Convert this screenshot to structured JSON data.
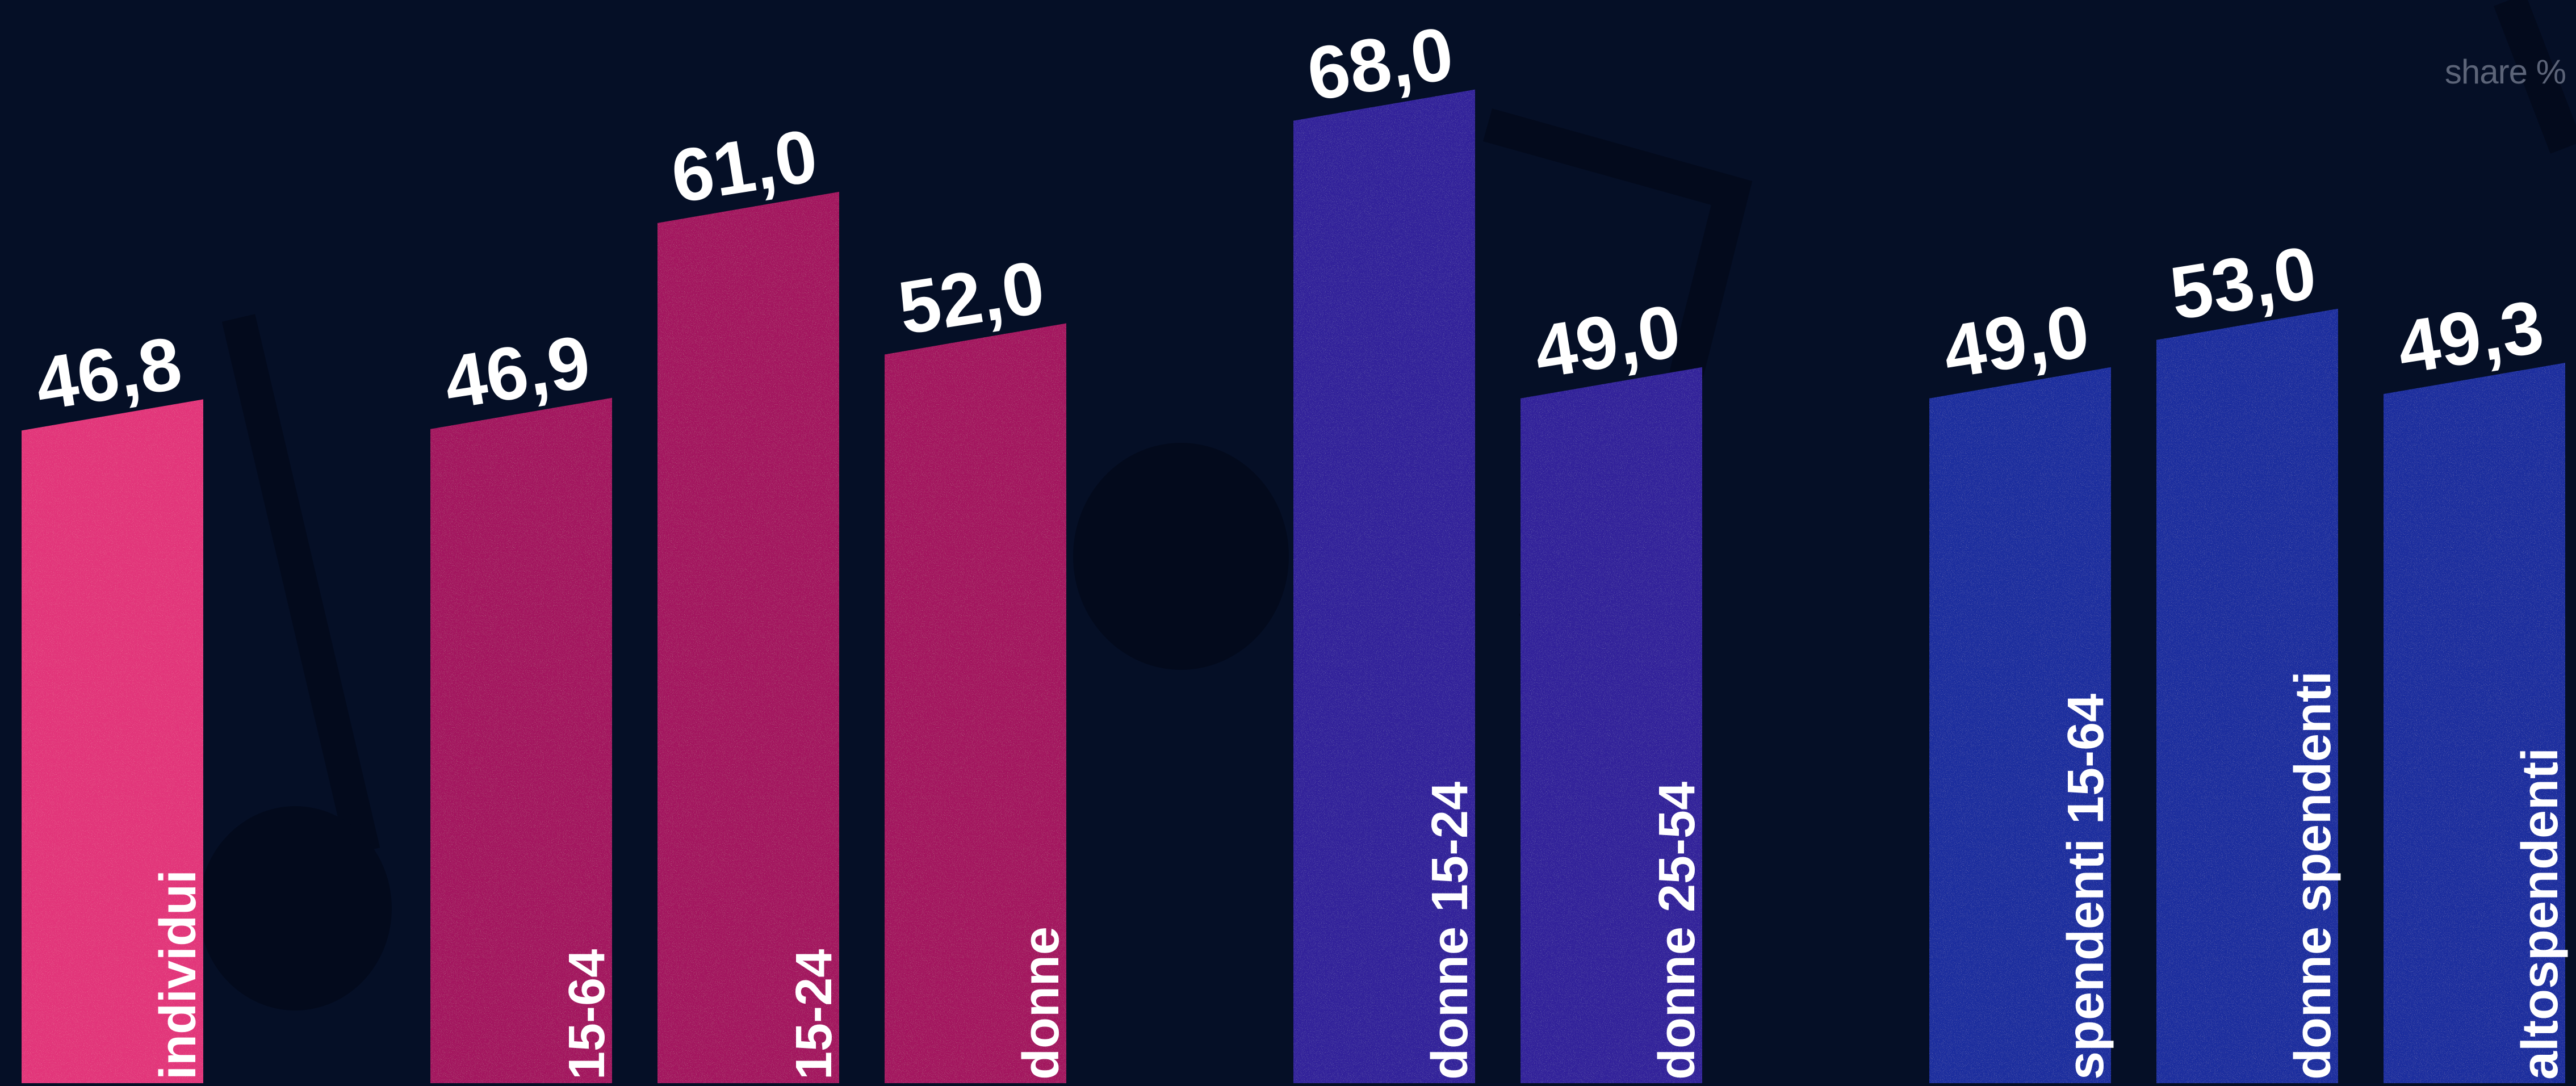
{
  "chart_data": {
    "type": "bar",
    "unit_label": "share %",
    "ylim": [
      0,
      70
    ],
    "grid": false,
    "legend": "none",
    "categories": [
      "individui",
      "15-64",
      "15-24",
      "donne",
      "donne 15-24",
      "donne 25-54",
      "spendenti 15-64",
      "donne spendenti",
      "altospendenti"
    ],
    "values": [
      46.8,
      46.9,
      61.0,
      52.0,
      68.0,
      49.0,
      49.0,
      53.0,
      49.3
    ],
    "value_labels": [
      "46,8",
      "46,9",
      "61,0",
      "52,0",
      "68,0",
      "49,0",
      "49,0",
      "53,0",
      "49,3"
    ],
    "groups": [
      {
        "color": "#e2357a",
        "members": [
          "individui"
        ]
      },
      {
        "color": "#a3175f",
        "members": [
          "15-64",
          "15-24",
          "donne"
        ]
      },
      {
        "color": "#30249a",
        "members": [
          "donne 15-24",
          "donne 25-54"
        ]
      },
      {
        "color": "#1a2d9e",
        "members": [
          "spendenti 15-64",
          "donne spendenti",
          "altospendenti"
        ]
      }
    ]
  }
}
